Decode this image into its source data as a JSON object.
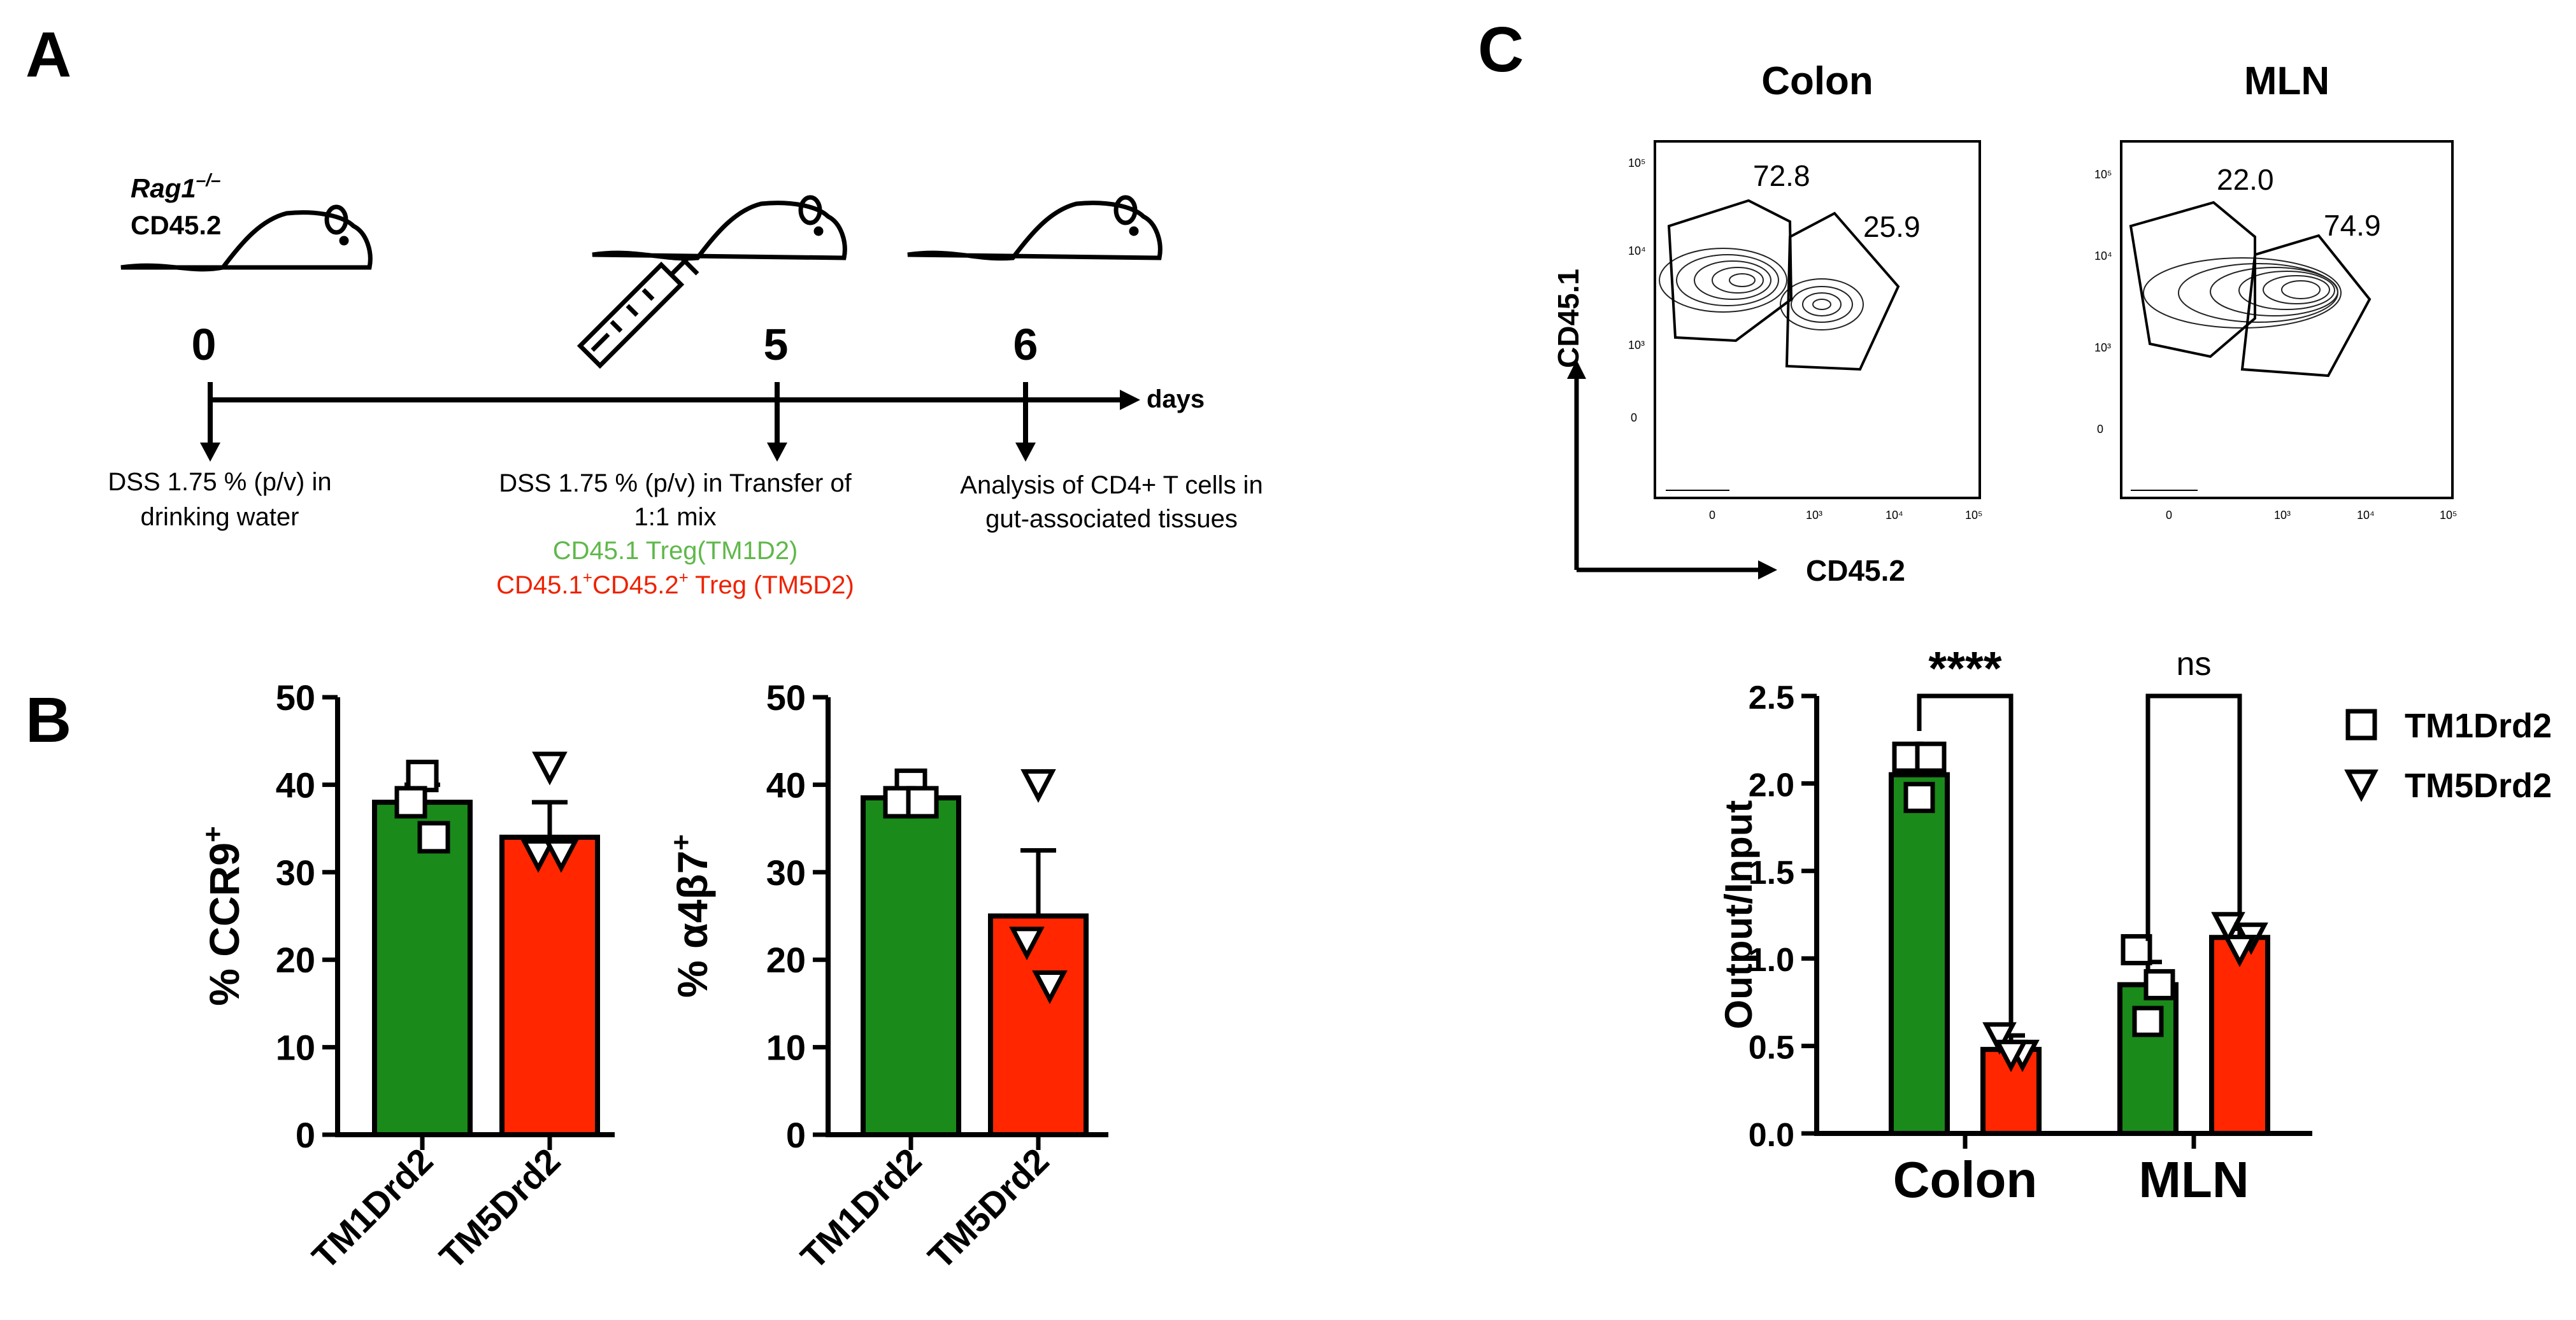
{
  "panels": {
    "A": {
      "letter": "A",
      "mouse_label_1": "Rag1",
      "mouse_label_1_sup": "–/–",
      "mouse_label_2": "CD45.2",
      "days": [
        "0",
        "5",
        "6"
      ],
      "axis_unit": "days",
      "note_day0": [
        "DSS 1.75 % (p/v) in",
        "drinking water"
      ],
      "note_day5": [
        "DSS 1.75 % (p/v) in Transfer of",
        "1:1 mix"
      ],
      "note_day5_green": "CD45.1 Treg(TM1D2)",
      "note_day5_red_a": "CD45.1",
      "note_day5_red_b": "CD45.2",
      "note_day5_red_c": " Treg (TM5D2)",
      "note_day5_red_sup": "+",
      "note_day6": [
        "Analysis of CD4+ T cells in",
        "gut-associated tissues"
      ]
    },
    "B": {
      "letter": "B"
    },
    "C": {
      "letter": "C",
      "flow_titles": [
        "Colon",
        "MLN"
      ],
      "flow_x_label": "CD45.2",
      "flow_y_label": "CD45.1",
      "flow_ticks_y": [
        "10⁵",
        "10⁴",
        "10³",
        "0"
      ],
      "flow_ticks_x": [
        "0",
        "10³",
        "10⁴",
        "10⁵"
      ],
      "gate_values": {
        "colon": [
          "72.8",
          "25.9"
        ],
        "mln": [
          "22.0",
          "74.9"
        ]
      },
      "significance": [
        "****",
        "ns"
      ]
    }
  },
  "colors": {
    "TM1Drd2": "#1a8a1a",
    "TM5Drd2": "#ff2600",
    "green_text": "#5fb84a",
    "red_text": "#ee2200"
  },
  "chart_data": [
    {
      "type": "bar",
      "ylabel": "% CCR9",
      "ylabel_sup": "+",
      "ylim": [
        0,
        50
      ],
      "yticks": [
        "0",
        "10",
        "20",
        "30",
        "40",
        "50"
      ],
      "categories": [
        "TM1Drd2",
        "TM5Drd2"
      ],
      "values": [
        38,
        34
      ],
      "errors": [
        2,
        4
      ],
      "points": [
        [
          41,
          38,
          34
        ],
        [
          42,
          32,
          32
        ]
      ]
    },
    {
      "type": "bar",
      "ylabel": "% α4β7",
      "ylabel_sup": "+",
      "ylim": [
        0,
        50
      ],
      "yticks": [
        "0",
        "10",
        "20",
        "30",
        "40",
        "50"
      ],
      "categories": [
        "TM1Drd2",
        "TM5Drd2"
      ],
      "values": [
        38.5,
        25
      ],
      "errors": [
        1,
        7.5
      ],
      "points": [
        [
          40,
          38,
          38
        ],
        [
          40,
          22,
          17
        ]
      ]
    },
    {
      "type": "bar",
      "ylabel": "Output/Input",
      "ylim": [
        0,
        2.5
      ],
      "yticks": [
        "0.0",
        "0.5",
        "1.0",
        "1.5",
        "2.0",
        "2.5"
      ],
      "categories": [
        "Colon",
        "MLN"
      ],
      "series": [
        {
          "name": "TM1Drd2",
          "values": [
            2.05,
            0.85
          ],
          "errors": [
            0.12,
            0.13
          ],
          "points": [
            [
              2.15,
              2.15,
              1.92
            ],
            [
              1.05,
              0.85,
              0.64
            ]
          ]
        },
        {
          "name": "TM5Drd2",
          "values": [
            0.48,
            1.12
          ],
          "errors": [
            0.08,
            0.05
          ],
          "points": [
            [
              0.55,
              0.45,
              0.45
            ],
            [
              1.18,
              1.12,
              1.05
            ]
          ]
        }
      ],
      "legend": "right"
    }
  ]
}
